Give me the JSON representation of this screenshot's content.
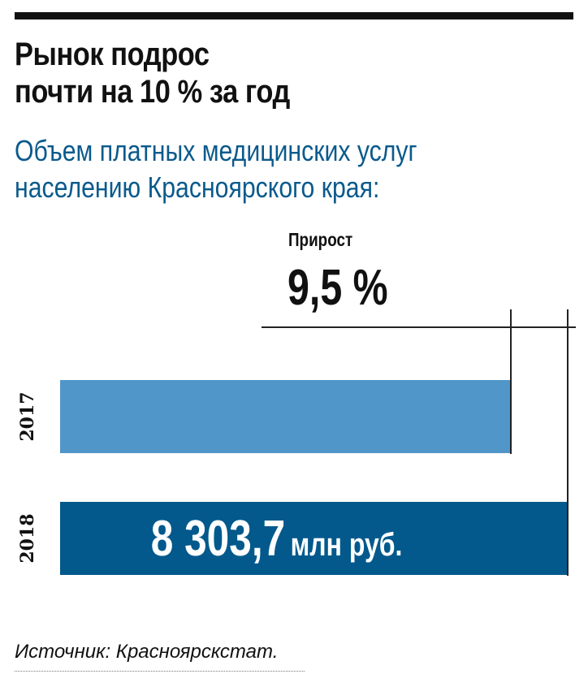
{
  "header": {
    "title_line1": "Рынок подрос",
    "title_line2": "почти на 10 % за год",
    "subtitle_line1": "Объем платных медицинских услуг",
    "subtitle_line2": "населению Красноярского края:"
  },
  "growth": {
    "label": "Прирост",
    "value": "9,5 %"
  },
  "bars": [
    {
      "year": "2017",
      "value_label": "",
      "color": "#5096c8"
    },
    {
      "year": "2018",
      "value_number": "8 303,7",
      "value_unit": "млн руб.",
      "color": "#03598c"
    }
  ],
  "source": "Источник: Красноярскстат.",
  "chart_data": {
    "type": "bar",
    "orientation": "horizontal",
    "title": "Рынок подрос почти на 10 % за год",
    "subtitle": "Объем платных медицинских услуг населению Красноярского края:",
    "categories": [
      "2017",
      "2018"
    ],
    "values": [
      7583.3,
      8303.7
    ],
    "value_labels": [
      "",
      "8 303,7 млн руб."
    ],
    "unit": "млн руб.",
    "annotations": [
      {
        "label": "Прирост",
        "value": "9,5 %"
      }
    ],
    "xlabel": "",
    "ylabel": "",
    "grid": false,
    "legend": null,
    "source": "Источник: Красноярскстат."
  }
}
